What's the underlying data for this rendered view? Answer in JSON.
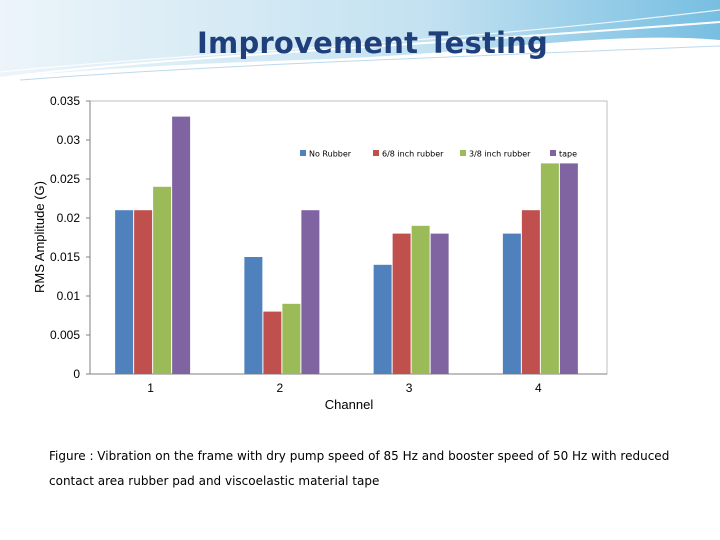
{
  "slide": {
    "title": "Improvement Testing",
    "caption": "Figure : Vibration on the frame with dry pump speed of 85 Hz and booster speed of 50 Hz with  reduced contact area rubber pad and viscoelastic material tape"
  },
  "chart_data": {
    "type": "bar",
    "categories": [
      "1",
      "2",
      "3",
      "4"
    ],
    "series": [
      {
        "name": "No Rubber",
        "color": "#4f81bd",
        "values": [
          0.021,
          0.015,
          0.014,
          0.018
        ]
      },
      {
        "name": "6/8 inch rubber",
        "color": "#c0504d",
        "values": [
          0.021,
          0.008,
          0.018,
          0.021
        ]
      },
      {
        "name": "3/8 inch rubber",
        "color": "#9bbb59",
        "values": [
          0.024,
          0.009,
          0.019,
          0.027
        ]
      },
      {
        "name": "tape",
        "color": "#8064a2",
        "values": [
          0.033,
          0.021,
          0.018,
          0.027
        ]
      }
    ],
    "xlabel": "Channel",
    "ylabel": "RMS Amplitude (G)",
    "ylim": [
      0,
      0.035
    ],
    "yticks": [
      "0",
      "0.005",
      "0.01",
      "0.015",
      "0.02",
      "0.025",
      "0.03",
      "0.035"
    ],
    "grid": false,
    "legend": "top-right"
  }
}
